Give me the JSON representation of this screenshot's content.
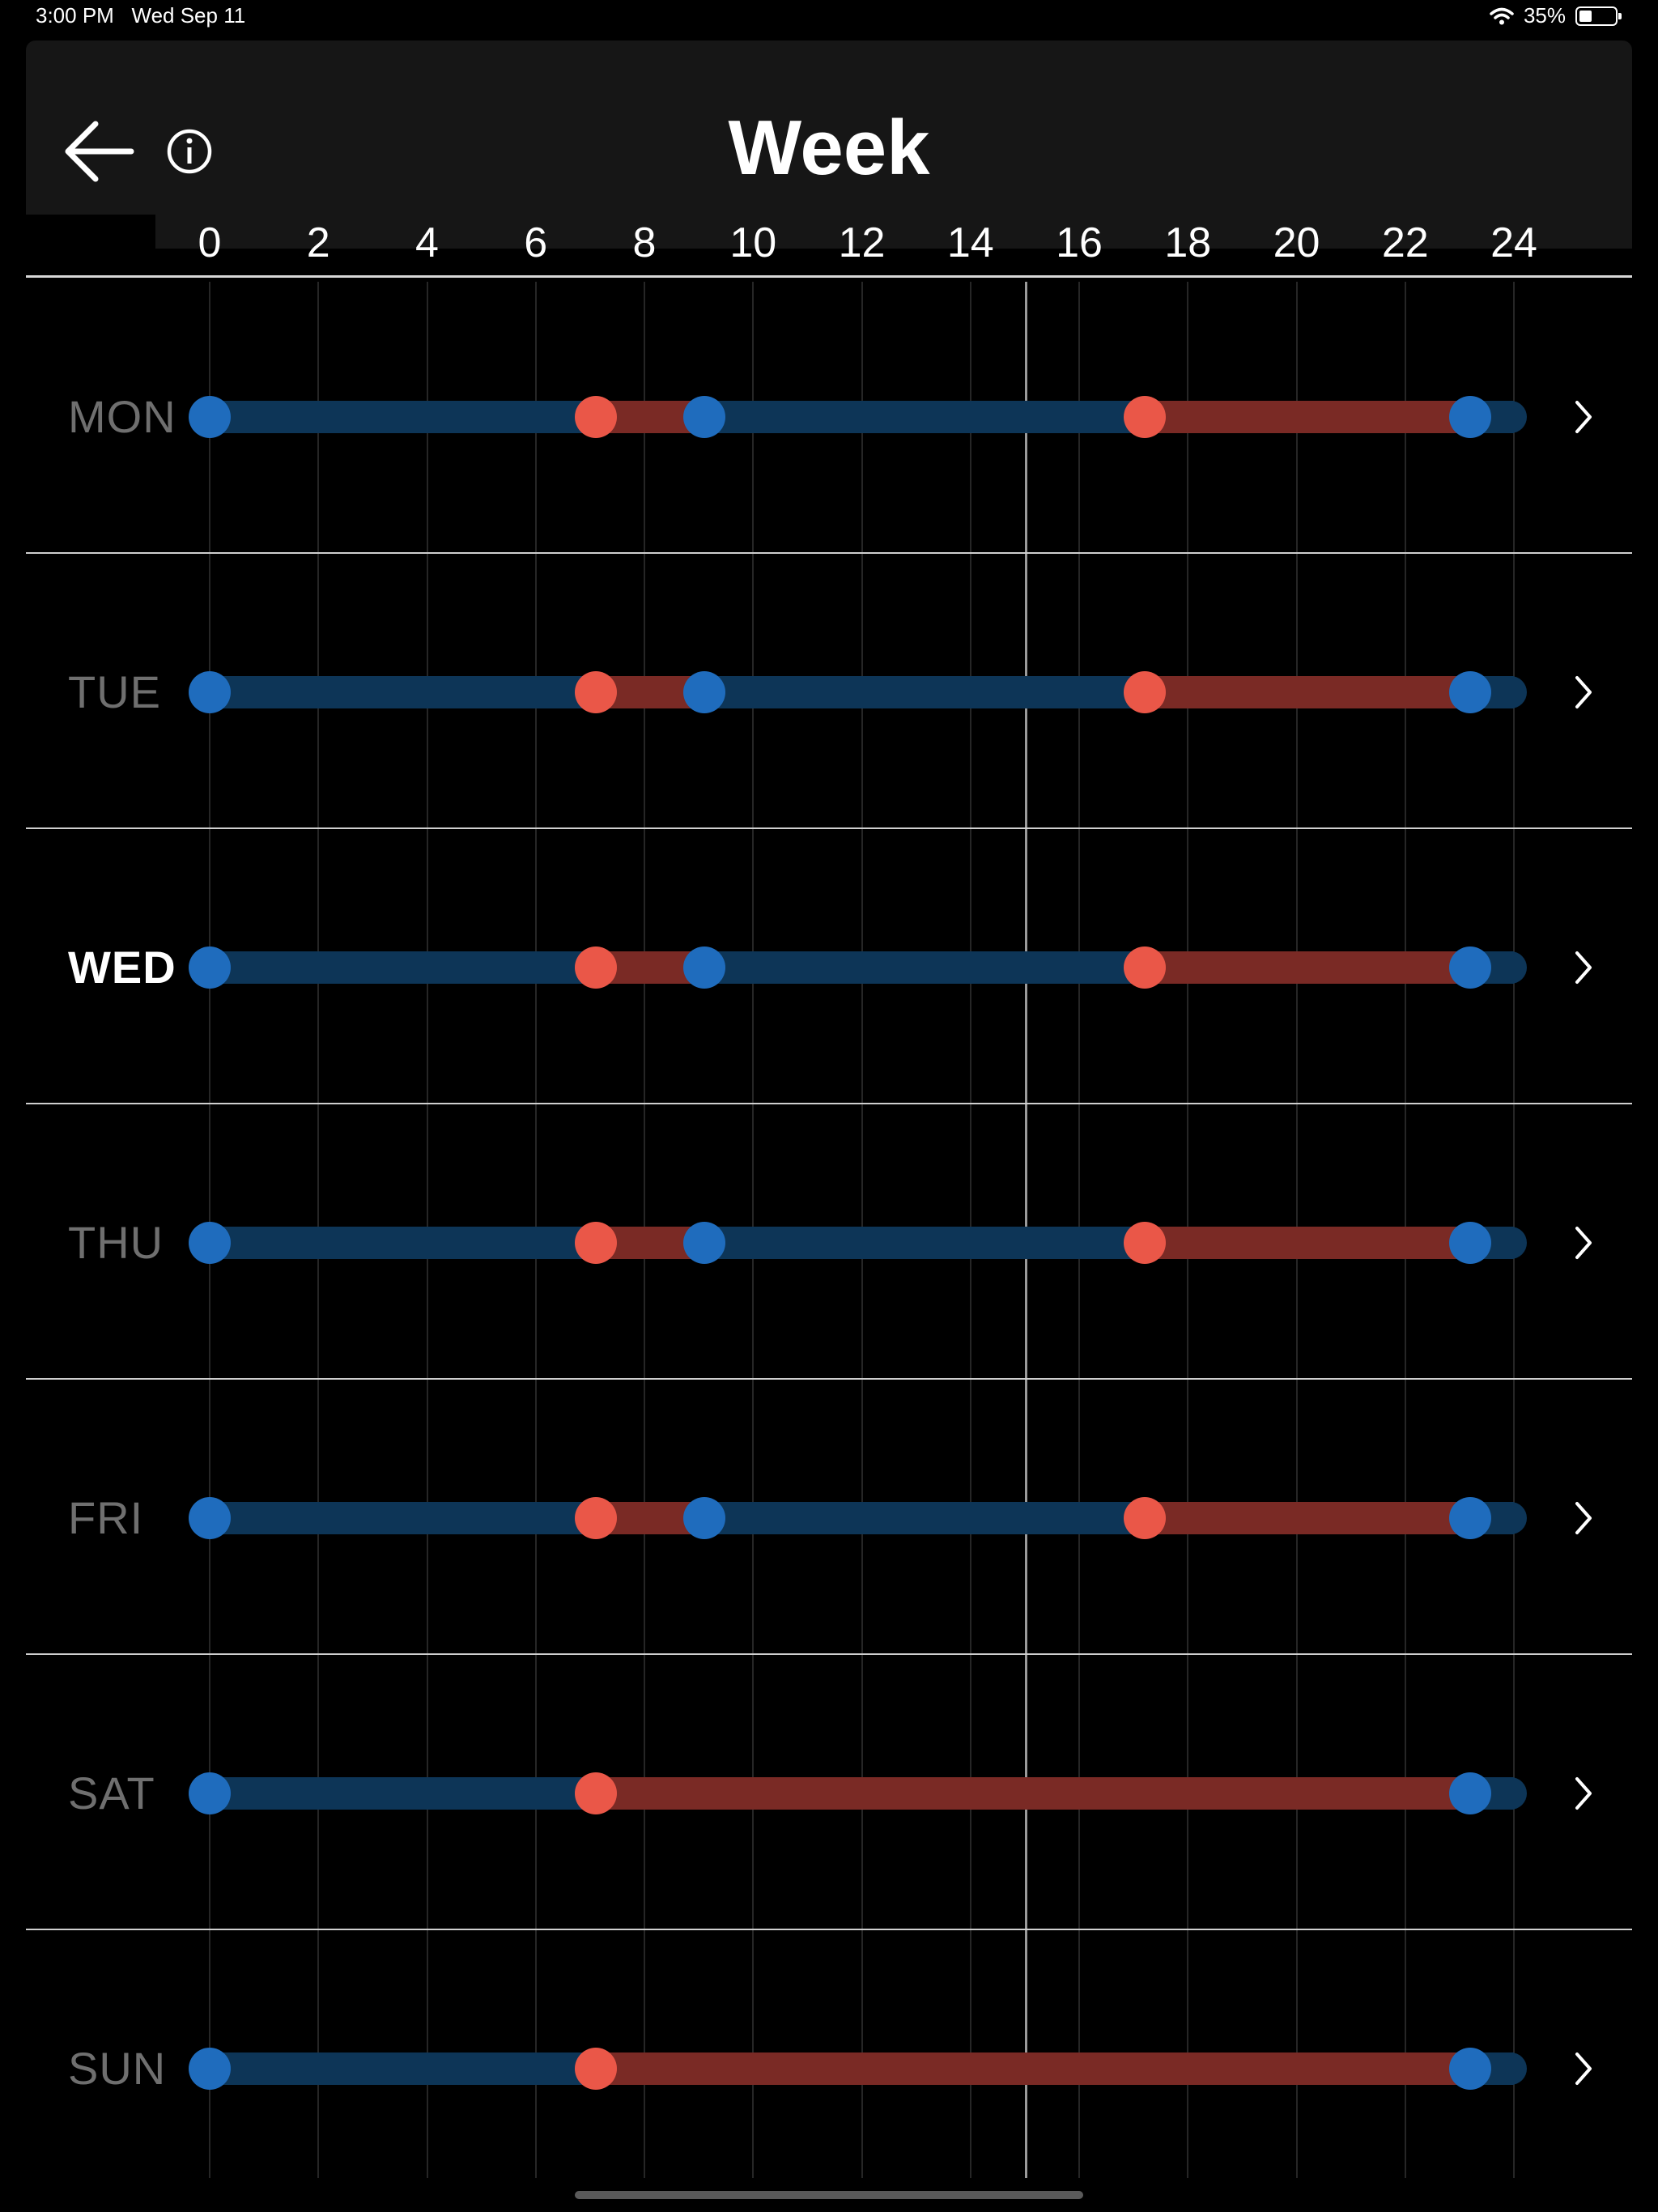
{
  "status_bar": {
    "time": "3:00 PM",
    "date": "Wed Sep 11",
    "battery": "35%",
    "battery_level": 0.35
  },
  "header": {
    "title": "Week"
  },
  "axis": {
    "ticks": [
      "0",
      "2",
      "4",
      "6",
      "8",
      "10",
      "12",
      "14",
      "16",
      "18",
      "20",
      "22",
      "24"
    ],
    "range": [
      0,
      24
    ]
  },
  "now_hour": 15,
  "colors": {
    "cool": "#1f6cbd",
    "warm": "#ea5748",
    "cool_bar": "#0d3557",
    "warm_bar": "#7a2a25"
  },
  "days": [
    {
      "label": "MON",
      "today": false,
      "points": [
        {
          "h": 0,
          "t": "cool"
        },
        {
          "h": 7.1,
          "t": "warm"
        },
        {
          "h": 9.1,
          "t": "cool"
        },
        {
          "h": 17.2,
          "t": "warm"
        },
        {
          "h": 23.2,
          "t": "cool"
        }
      ]
    },
    {
      "label": "TUE",
      "today": false,
      "points": [
        {
          "h": 0,
          "t": "cool"
        },
        {
          "h": 7.1,
          "t": "warm"
        },
        {
          "h": 9.1,
          "t": "cool"
        },
        {
          "h": 17.2,
          "t": "warm"
        },
        {
          "h": 23.2,
          "t": "cool"
        }
      ]
    },
    {
      "label": "WED",
      "today": true,
      "points": [
        {
          "h": 0,
          "t": "cool"
        },
        {
          "h": 7.1,
          "t": "warm"
        },
        {
          "h": 9.1,
          "t": "cool"
        },
        {
          "h": 17.2,
          "t": "warm"
        },
        {
          "h": 23.2,
          "t": "cool"
        }
      ]
    },
    {
      "label": "THU",
      "today": false,
      "points": [
        {
          "h": 0,
          "t": "cool"
        },
        {
          "h": 7.1,
          "t": "warm"
        },
        {
          "h": 9.1,
          "t": "cool"
        },
        {
          "h": 17.2,
          "t": "warm"
        },
        {
          "h": 23.2,
          "t": "cool"
        }
      ]
    },
    {
      "label": "FRI",
      "today": false,
      "points": [
        {
          "h": 0,
          "t": "cool"
        },
        {
          "h": 7.1,
          "t": "warm"
        },
        {
          "h": 9.1,
          "t": "cool"
        },
        {
          "h": 17.2,
          "t": "warm"
        },
        {
          "h": 23.2,
          "t": "cool"
        }
      ]
    },
    {
      "label": "SAT",
      "today": false,
      "points": [
        {
          "h": 0,
          "t": "cool"
        },
        {
          "h": 7.1,
          "t": "warm"
        },
        {
          "h": 23.2,
          "t": "cool"
        }
      ]
    },
    {
      "label": "SUN",
      "today": false,
      "points": [
        {
          "h": 0,
          "t": "cool"
        },
        {
          "h": 7.1,
          "t": "warm"
        },
        {
          "h": 23.2,
          "t": "cool"
        }
      ]
    }
  ]
}
